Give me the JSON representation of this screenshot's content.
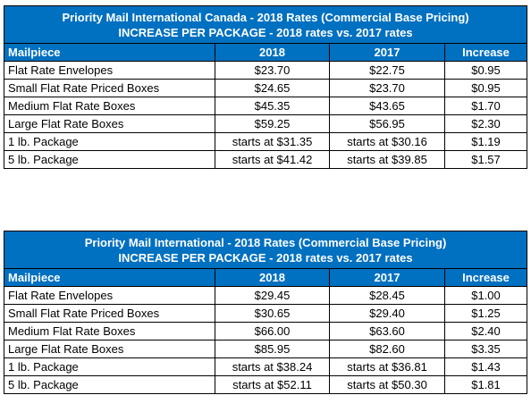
{
  "tables": [
    {
      "title_line1": "Priority Mail International Canada - 2018 Rates (Commercial Base Pricing)",
      "title_line2": "INCREASE PER PACKAGE - 2018 rates vs. 2017 rates",
      "headers": [
        "Mailpiece",
        "2018",
        "2017",
        "Increase"
      ],
      "rows": [
        [
          "Flat Rate Envelopes",
          "$23.70",
          "$22.75",
          "$0.95"
        ],
        [
          "Small Flat Rate Priced Boxes",
          "$24.65",
          "$23.70",
          "$0.95"
        ],
        [
          "Medium Flat Rate Boxes",
          "$45.35",
          "$43.65",
          "$1.70"
        ],
        [
          "Large Flat Rate Boxes",
          "$59.25",
          "$56.95",
          "$2.30"
        ],
        [
          "1 lb. Package",
          "starts at $31.35",
          "starts at $30.16",
          "$1.19"
        ],
        [
          "5 lb. Package",
          "starts at $41.42",
          "starts at $39.85",
          "$1.57"
        ]
      ]
    },
    {
      "title_line1": "Priority Mail International - 2018 Rates (Commercial Base Pricing)",
      "title_line2": "INCREASE PER PACKAGE - 2018 rates vs. 2017 rates",
      "headers": [
        "Mailpiece",
        "2018",
        "2017",
        "Increase"
      ],
      "rows": [
        [
          "Flat Rate Envelopes",
          "$29.45",
          "$28.45",
          "$1.00"
        ],
        [
          "Small Flat Rate Priced Boxes",
          "$30.65",
          "$29.40",
          "$1.25"
        ],
        [
          "Medium Flat Rate Boxes",
          "$66.00",
          "$63.60",
          "$2.40"
        ],
        [
          "Large Flat Rate Boxes",
          "$85.95",
          "$82.60",
          "$3.35"
        ],
        [
          "1 lb. Package",
          "starts at $38.24",
          "starts at $36.81",
          "$1.43"
        ],
        [
          "5 lb. Package",
          "starts at $52.11",
          "starts at $50.30",
          "$1.81"
        ]
      ]
    }
  ],
  "colors": {
    "header_bg": "#0070c0",
    "header_text": "#ffffff",
    "border": "#000000"
  }
}
